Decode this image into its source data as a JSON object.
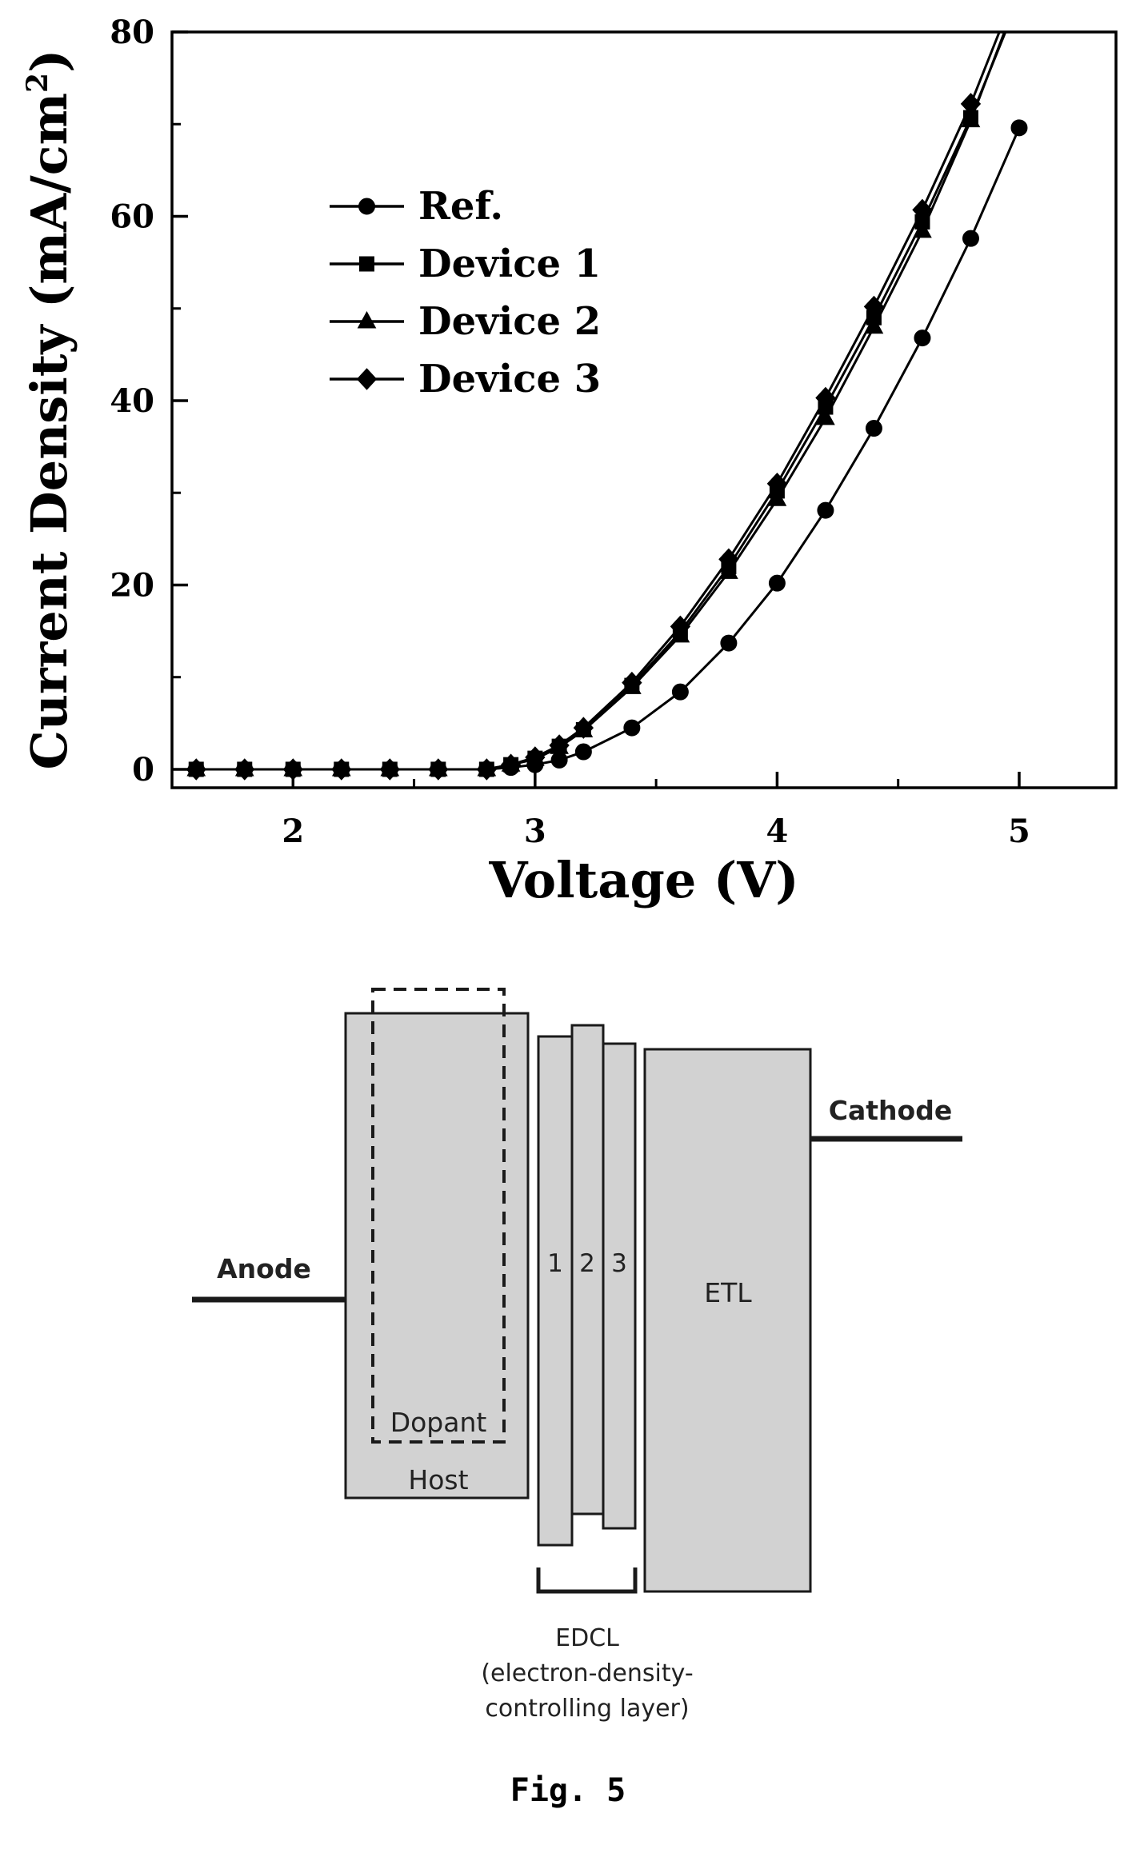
{
  "chart_data": {
    "type": "line",
    "xlabel": "Voltage (V)",
    "ylabel": "Current Density (mA/cm",
    "ylabel_superscript": "2",
    "ylabel_close": ")",
    "xlim": [
      1.5,
      5.4
    ],
    "ylim": [
      -2,
      80
    ],
    "x_ticks": [
      2,
      3,
      4,
      5
    ],
    "x_tick_labels": [
      "2",
      "3",
      "4",
      "5"
    ],
    "y_ticks": [
      0,
      20,
      40,
      60,
      80
    ],
    "y_tick_labels": [
      "0",
      "20",
      "40",
      "60",
      "80"
    ],
    "grid": false,
    "legend_position": "upper-left",
    "series": [
      {
        "name": "Ref.",
        "marker": "circle",
        "x": [
          1.6,
          1.8,
          2.0,
          2.2,
          2.4,
          2.6,
          2.8,
          2.9,
          3.0,
          3.1,
          3.2,
          3.4,
          3.6,
          3.8,
          4.0,
          4.2,
          4.4,
          4.6,
          4.8,
          5.0
        ],
        "y": [
          0,
          0,
          0,
          0,
          0,
          0,
          0,
          0.2,
          0.5,
          1.0,
          1.9,
          4.5,
          8.4,
          13.7,
          20.2,
          28.1,
          37.0,
          46.8,
          57.6,
          69.6
        ]
      },
      {
        "name": "Device 1",
        "marker": "square",
        "x": [
          1.6,
          1.8,
          2.0,
          2.2,
          2.4,
          2.6,
          2.8,
          2.9,
          3.0,
          3.1,
          3.2,
          3.4,
          3.6,
          3.8,
          4.0,
          4.2,
          4.4,
          4.6,
          4.8
        ],
        "y": [
          0,
          0,
          0,
          0,
          0,
          0,
          0,
          0.5,
          1.2,
          2.5,
          4.3,
          9.1,
          14.9,
          22.0,
          30.2,
          39.3,
          49.0,
          59.4,
          70.7
        ]
      },
      {
        "name": "Device 2",
        "marker": "triangle",
        "x": [
          1.6,
          1.8,
          2.0,
          2.2,
          2.4,
          2.6,
          2.8,
          2.9,
          3.0,
          3.1,
          3.2,
          3.4,
          3.6,
          3.8,
          4.0,
          4.2,
          4.4,
          4.6,
          4.8
        ],
        "y": [
          0,
          0,
          0,
          0,
          0,
          0,
          0,
          0.5,
          1.1,
          2.4,
          4.2,
          8.9,
          14.5,
          21.4,
          29.3,
          38.1,
          48.0,
          58.4,
          70.4
        ]
      },
      {
        "name": "Device 3",
        "marker": "diamond",
        "x": [
          1.6,
          1.8,
          2.0,
          2.2,
          2.4,
          2.6,
          2.8,
          2.9,
          3.0,
          3.1,
          3.2,
          3.4,
          3.6,
          3.8,
          4.0,
          4.2,
          4.4,
          4.6,
          4.8
        ],
        "y": [
          0,
          0,
          0,
          0,
          0,
          0,
          0,
          0.5,
          1.3,
          2.6,
          4.5,
          9.4,
          15.5,
          22.8,
          31.0,
          40.3,
          50.2,
          60.7,
          72.2
        ]
      }
    ]
  },
  "diagram": {
    "labels": {
      "anode": "Anode",
      "cathode": "Cathode",
      "host": "Host",
      "dopant": "Dopant",
      "layer1": "1",
      "layer2": "2",
      "layer3": "3",
      "etl": "ETL",
      "edcl_line1": "EDCL",
      "edcl_line2": "(electron-density-",
      "edcl_line3": "controlling layer)"
    },
    "fill_color": "#d2d2d2",
    "stroke_color": "#1a1a1a"
  },
  "caption": "Fig. 5"
}
